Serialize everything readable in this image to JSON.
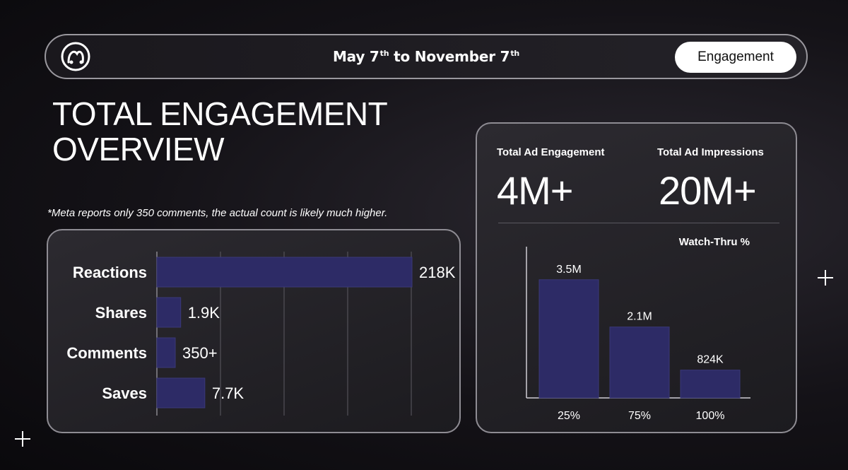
{
  "header": {
    "date_from": "May 7",
    "date_from_suffix": "th",
    "date_sep": "to",
    "date_to": "November 7",
    "date_to_suffix": "th",
    "tag_label": "Engagement"
  },
  "page": {
    "title_line1": "TOTAL ENGAGEMENT",
    "title_line2": "OVERVIEW",
    "footnote": "*Meta reports only 350 comments, the actual count is likely much higher."
  },
  "kpis": [
    {
      "label": "Total Ad Engagement",
      "value": "4M+"
    },
    {
      "label": "Total Ad Impressions",
      "value": "20M+"
    }
  ],
  "colors": {
    "bar": "#2d2b66",
    "bar_stroke": "#3a3878",
    "grid": "#5c5a62"
  },
  "chart_data": [
    {
      "type": "bar",
      "orientation": "horizontal",
      "categories": [
        "Reactions",
        "Shares",
        "Comments",
        "Saves"
      ],
      "values": [
        218000,
        1900,
        350,
        7700
      ],
      "data_labels": [
        "218K",
        "1.9K",
        "350+",
        "7.7K"
      ],
      "title": "",
      "grid": true
    },
    {
      "type": "bar",
      "orientation": "vertical",
      "title": "Watch-Thru %",
      "categories": [
        "25%",
        "75%",
        "100%"
      ],
      "values": [
        3500000,
        2100000,
        824000
      ],
      "data_labels": [
        "3.5M",
        "2.1M",
        "824K"
      ],
      "ylim": [
        0,
        4500000
      ],
      "grid": false
    }
  ]
}
